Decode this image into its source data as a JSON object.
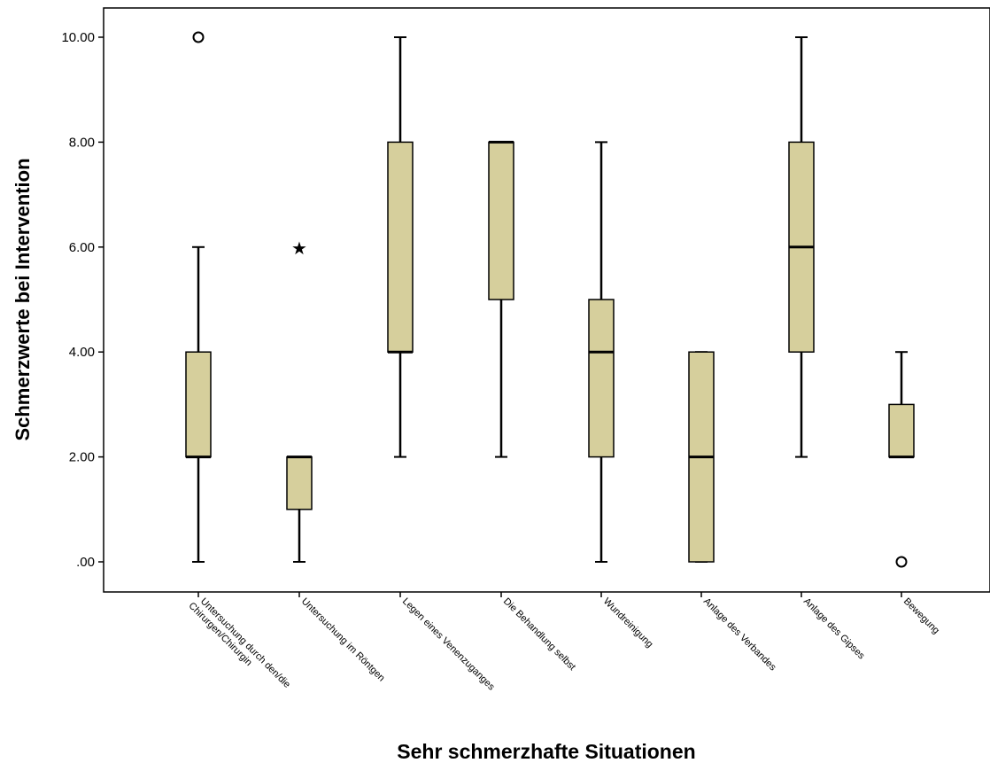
{
  "chart_data": {
    "type": "boxplot",
    "xlabel": "Sehr schmerzhafte Situationen",
    "ylabel": "Schmerzwerte bei Intervention",
    "ylim": [
      0,
      10
    ],
    "yticks": [
      {
        "value": 0,
        "label": ".00"
      },
      {
        "value": 2,
        "label": "2.00"
      },
      {
        "value": 4,
        "label": "4.00"
      },
      {
        "value": 6,
        "label": "6.00"
      },
      {
        "value": 8,
        "label": "8.00"
      },
      {
        "value": 10,
        "label": "10.00"
      }
    ],
    "categories": [
      {
        "line1": "Untersuchung durch den/die",
        "line2": "Chirurgen/Chirurgin"
      },
      {
        "line1": "Untersuchung im  Röntgen",
        "line2": ""
      },
      {
        "line1": "Legen eines Venenzuganges",
        "line2": ""
      },
      {
        "line1": "Die Behandlung selbst",
        "line2": ""
      },
      {
        "line1": "Wundreinigung",
        "line2": ""
      },
      {
        "line1": "Anlage des Verbandes",
        "line2": ""
      },
      {
        "line1": "Anlage des Gipses",
        "line2": ""
      },
      {
        "line1": "Bewegung",
        "line2": ""
      }
    ],
    "boxes": [
      {
        "whisker_low": 0,
        "q1": 2,
        "median": 2,
        "q3": 4,
        "whisker_high": 6,
        "outliers": [
          {
            "value": 10,
            "marker": "circle"
          }
        ]
      },
      {
        "whisker_low": 0,
        "q1": 1,
        "median": 2,
        "q3": 2,
        "whisker_high": 2,
        "outliers": [
          {
            "value": 6,
            "marker": "star"
          }
        ]
      },
      {
        "whisker_low": 2,
        "q1": 4,
        "median": 4,
        "q3": 8,
        "whisker_high": 10,
        "outliers": []
      },
      {
        "whisker_low": 2,
        "q1": 5,
        "median": 8,
        "q3": 8,
        "whisker_high": 8,
        "outliers": []
      },
      {
        "whisker_low": 0,
        "q1": 2,
        "median": 4,
        "q3": 5,
        "whisker_high": 8,
        "outliers": []
      },
      {
        "whisker_low": 0,
        "q1": 0,
        "median": 2,
        "q3": 4,
        "whisker_high": 4,
        "outliers": []
      },
      {
        "whisker_low": 2,
        "q1": 4,
        "median": 6,
        "q3": 8,
        "whisker_high": 10,
        "outliers": []
      },
      {
        "whisker_low": 2,
        "q1": 2,
        "median": 2,
        "q3": 3,
        "whisker_high": 4,
        "outliers": [
          {
            "value": 0,
            "marker": "circle"
          }
        ]
      }
    ],
    "box_fill": "#d6cf9c",
    "line_color": "#000000",
    "grid": false,
    "legend": false
  }
}
